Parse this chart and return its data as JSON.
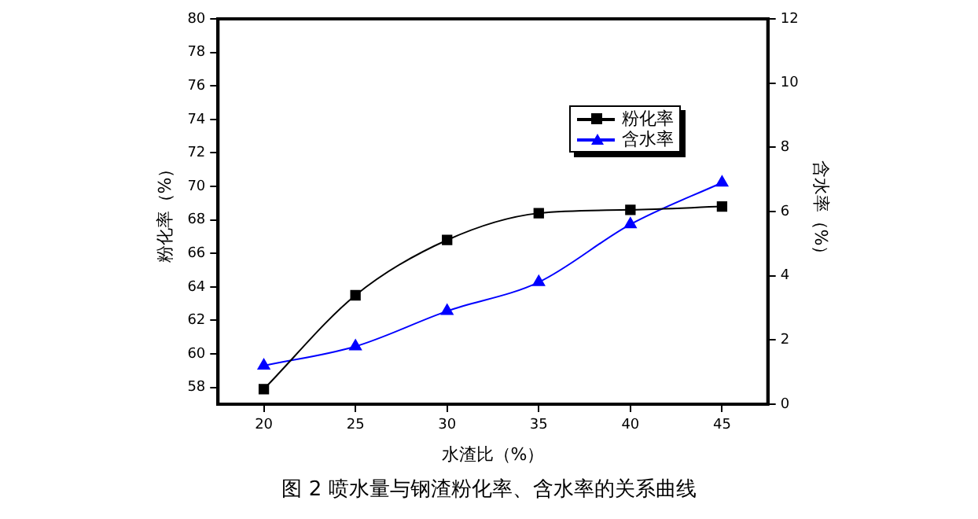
{
  "chart_data": {
    "type": "line",
    "xlabel": "水渣比（%）",
    "ylabel": "粉化率（%）",
    "y2label": "含水率（%）",
    "annotations": [
      "图 2  喷水量与钢渣粉化率、含水率的关系曲线"
    ],
    "x": [
      20,
      25,
      30,
      35,
      40,
      45
    ],
    "series": [
      {
        "name": "粉化率",
        "color": "#000000",
        "marker": "square",
        "values": [
          57.9,
          63.5,
          66.8,
          68.4,
          68.6,
          68.8
        ]
      },
      {
        "name": "含水率",
        "color": "#0000ff",
        "marker": "triangle",
        "axis": "y2",
        "values": [
          1.2,
          1.8,
          2.9,
          3.8,
          5.6,
          6.9
        ]
      }
    ],
    "xlim": [
      17.5,
      47.5
    ],
    "xticks": [
      20,
      25,
      30,
      35,
      40,
      45
    ],
    "ylim": [
      57,
      80
    ],
    "yticks": [
      58,
      60,
      62,
      64,
      66,
      68,
      70,
      72,
      74,
      76,
      78,
      80
    ],
    "y2lim": [
      0,
      12
    ],
    "y2ticks": [
      0,
      2,
      4,
      6,
      8,
      10,
      12
    ],
    "grid": false,
    "legend": "top right"
  }
}
